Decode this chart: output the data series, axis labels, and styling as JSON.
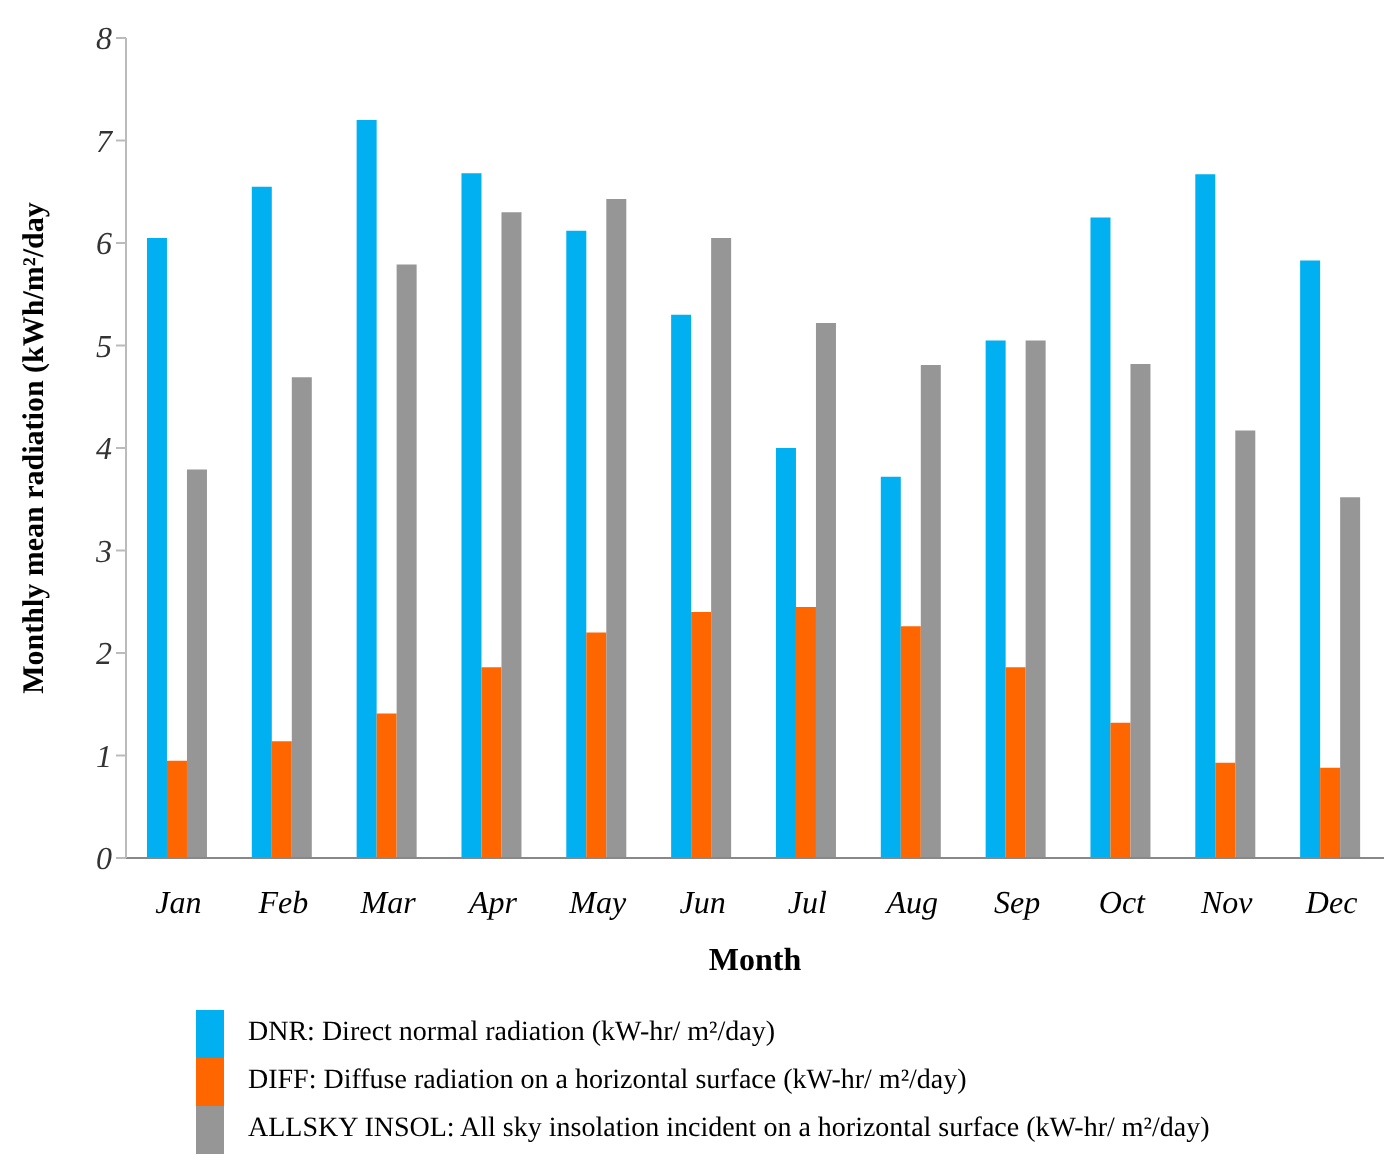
{
  "chart_data": {
    "type": "bar",
    "xlabel": "Month",
    "ylabel": "Monthly mean radiation (kWh/m²/day",
    "categories": [
      "Jan",
      "Feb",
      "Mar",
      "Apr",
      "May",
      "Jun",
      "Jul",
      "Aug",
      "Sep",
      "Oct",
      "Nov",
      "Dec"
    ],
    "series": [
      {
        "name": "DNR: Direct normal radiation (kW-hr/ m²/day)",
        "color": "#00b0f0",
        "values": [
          6.05,
          6.55,
          7.2,
          6.68,
          6.12,
          5.3,
          4.0,
          3.72,
          5.05,
          6.25,
          6.67,
          5.83
        ]
      },
      {
        "name": "DIFF: Diffuse radiation on a horizontal surface (kW-hr/ m²/day)",
        "color": "#ff6600",
        "values": [
          0.95,
          1.14,
          1.41,
          1.86,
          2.2,
          2.4,
          2.45,
          2.26,
          1.86,
          1.32,
          0.93,
          0.88
        ]
      },
      {
        "name": "ALLSKY INSOL: All sky insolation incident on a horizontal surface (kW-hr/ m²/day)",
        "color": "#969696",
        "values": [
          3.79,
          4.69,
          5.79,
          6.3,
          6.43,
          6.05,
          5.22,
          4.81,
          5.05,
          4.82,
          4.17,
          3.52
        ]
      }
    ],
    "ylim": [
      0,
      8
    ],
    "yticks": [
      0,
      1,
      2,
      3,
      4,
      5,
      6,
      7,
      8
    ],
    "grid": false,
    "legend": "bottom"
  }
}
